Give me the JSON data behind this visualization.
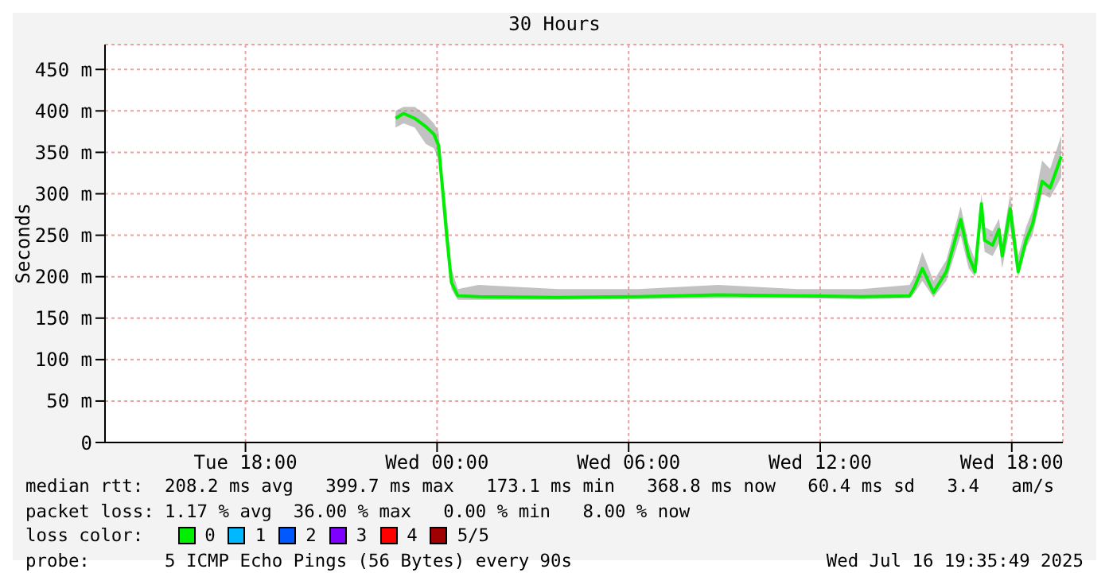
{
  "chart_data": {
    "type": "line",
    "title": "30 Hours",
    "ylabel": "Seconds",
    "x": [
      "2025-07-15T22:42",
      "2025-07-15T22:57",
      "2025-07-15T23:18",
      "2025-07-15T23:39",
      "2025-07-15T23:54",
      "2025-07-16T00:03",
      "2025-07-16T00:09",
      "2025-07-16T00:18",
      "2025-07-16T00:27",
      "2025-07-16T00:39",
      "2025-07-16T01:18",
      "2025-07-16T03:48",
      "2025-07-16T06:18",
      "2025-07-16T08:48",
      "2025-07-16T11:18",
      "2025-07-16T13:18",
      "2025-07-16T14:48",
      "2025-07-16T14:57",
      "2025-07-16T15:12",
      "2025-07-16T15:33",
      "2025-07-16T15:57",
      "2025-07-16T16:24",
      "2025-07-16T16:39",
      "2025-07-16T16:51",
      "2025-07-16T17:03",
      "2025-07-16T17:09",
      "2025-07-16T17:24",
      "2025-07-16T17:36",
      "2025-07-16T17:42",
      "2025-07-16T17:57",
      "2025-07-16T18:12",
      "2025-07-16T18:27",
      "2025-07-16T18:39",
      "2025-07-16T18:57",
      "2025-07-16T19:12",
      "2025-07-16T19:33"
    ],
    "series": [
      {
        "color": "#00ee00",
        "values": [
          391,
          397,
          391,
          381,
          372,
          358,
          315,
          250,
          193,
          177,
          176,
          175,
          176,
          178,
          177,
          176,
          177,
          187,
          210,
          181,
          206,
          269,
          225,
          206,
          288,
          244,
          238,
          257,
          225,
          282,
          206,
          244,
          263,
          315,
          307,
          345
        ],
        "lower": [
          380,
          385,
          380,
          360,
          355,
          340,
          300,
          240,
          185,
          172,
          172,
          172,
          173,
          174,
          174,
          173,
          174,
          180,
          195,
          175,
          195,
          250,
          210,
          200,
          270,
          230,
          225,
          240,
          210,
          260,
          200,
          235,
          250,
          300,
          295,
          320
        ],
        "upper": [
          400,
          405,
          405,
          395,
          385,
          375,
          330,
          280,
          210,
          185,
          190,
          185,
          185,
          190,
          185,
          185,
          190,
          200,
          230,
          195,
          220,
          285,
          240,
          220,
          300,
          260,
          255,
          270,
          240,
          300,
          225,
          260,
          280,
          340,
          330,
          370
        ]
      }
    ],
    "xlim": [
      "2025-07-15T13:36",
      "2025-07-16T19:36"
    ],
    "xticks": [
      {
        "value": "2025-07-15T18:00",
        "label": "Tue 18:00"
      },
      {
        "value": "2025-07-16T00:00",
        "label": "Wed 00:00"
      },
      {
        "value": "2025-07-16T06:00",
        "label": "Wed 06:00"
      },
      {
        "value": "2025-07-16T12:00",
        "label": "Wed 12:00"
      },
      {
        "value": "2025-07-16T18:00",
        "label": "Wed 18:00"
      }
    ],
    "ylim": [
      0,
      480
    ],
    "yticks": [
      {
        "value": 0,
        "label": "0"
      },
      {
        "value": 50,
        "label": "50 m"
      },
      {
        "value": 100,
        "label": "100 m"
      },
      {
        "value": 150,
        "label": "150 m"
      },
      {
        "value": 200,
        "label": "200 m"
      },
      {
        "value": 250,
        "label": "250 m"
      },
      {
        "value": 300,
        "label": "300 m"
      },
      {
        "value": 350,
        "label": "350 m"
      },
      {
        "value": 400,
        "label": "400 m"
      },
      {
        "value": 450,
        "label": "450 m"
      }
    ],
    "grid": true,
    "legend": false,
    "annotations": [
      "median rtt:  208.2 ms avg   399.7 ms max   173.1 ms min   368.8 ms now   60.4 ms sd   3.4   am/s",
      "packet loss: 1.17 % avg  36.00 % max   0.00 % min   8.00 % now",
      "loss color:",
      "0",
      "1",
      "2",
      "3",
      "4",
      "5/5",
      "probe:       5 ICMP Echo Pings (56 Bytes) every 90s",
      "Wed Jul 16 19:35:49 2025"
    ]
  }
}
